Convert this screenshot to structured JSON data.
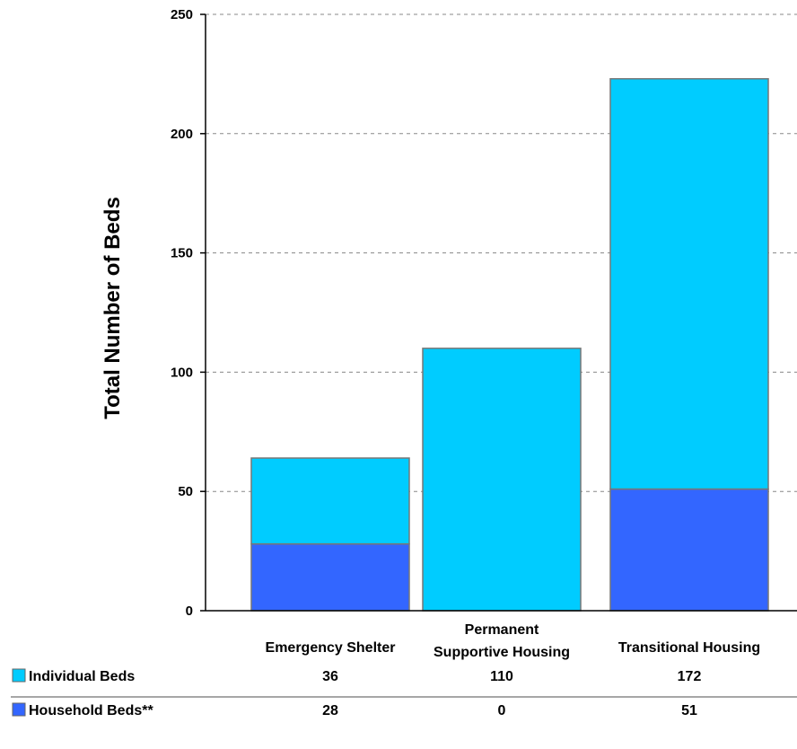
{
  "chart_data": {
    "type": "bar",
    "stacked": true,
    "categories": [
      "Emergency Shelter",
      "Permanent Supportive Housing",
      "Transitional Housing"
    ],
    "category_lines": [
      [
        "Emergency Shelter"
      ],
      [
        "Permanent",
        "Supportive Housing"
      ],
      [
        "Transitional Housing"
      ]
    ],
    "series": [
      {
        "name": "Household Beds**",
        "values": [
          28,
          0,
          51
        ],
        "color": "#3366ff"
      },
      {
        "name": "Individual Beds",
        "values": [
          36,
          110,
          172
        ],
        "color": "#00ccff"
      }
    ],
    "title": "",
    "xlabel": "",
    "ylabel": "Total Number of Beds",
    "ylim": [
      0,
      250
    ],
    "yticks": [
      0,
      50,
      100,
      150,
      200,
      250
    ],
    "grid": true,
    "legend": "data table below chart",
    "table_rows": [
      {
        "label": "Individual Beds",
        "values": [
          "36",
          "110",
          "172"
        ],
        "color": "#00ccff"
      },
      {
        "label": "Household Beds**",
        "values": [
          "28",
          "0",
          "51"
        ],
        "color": "#3366ff"
      }
    ]
  }
}
